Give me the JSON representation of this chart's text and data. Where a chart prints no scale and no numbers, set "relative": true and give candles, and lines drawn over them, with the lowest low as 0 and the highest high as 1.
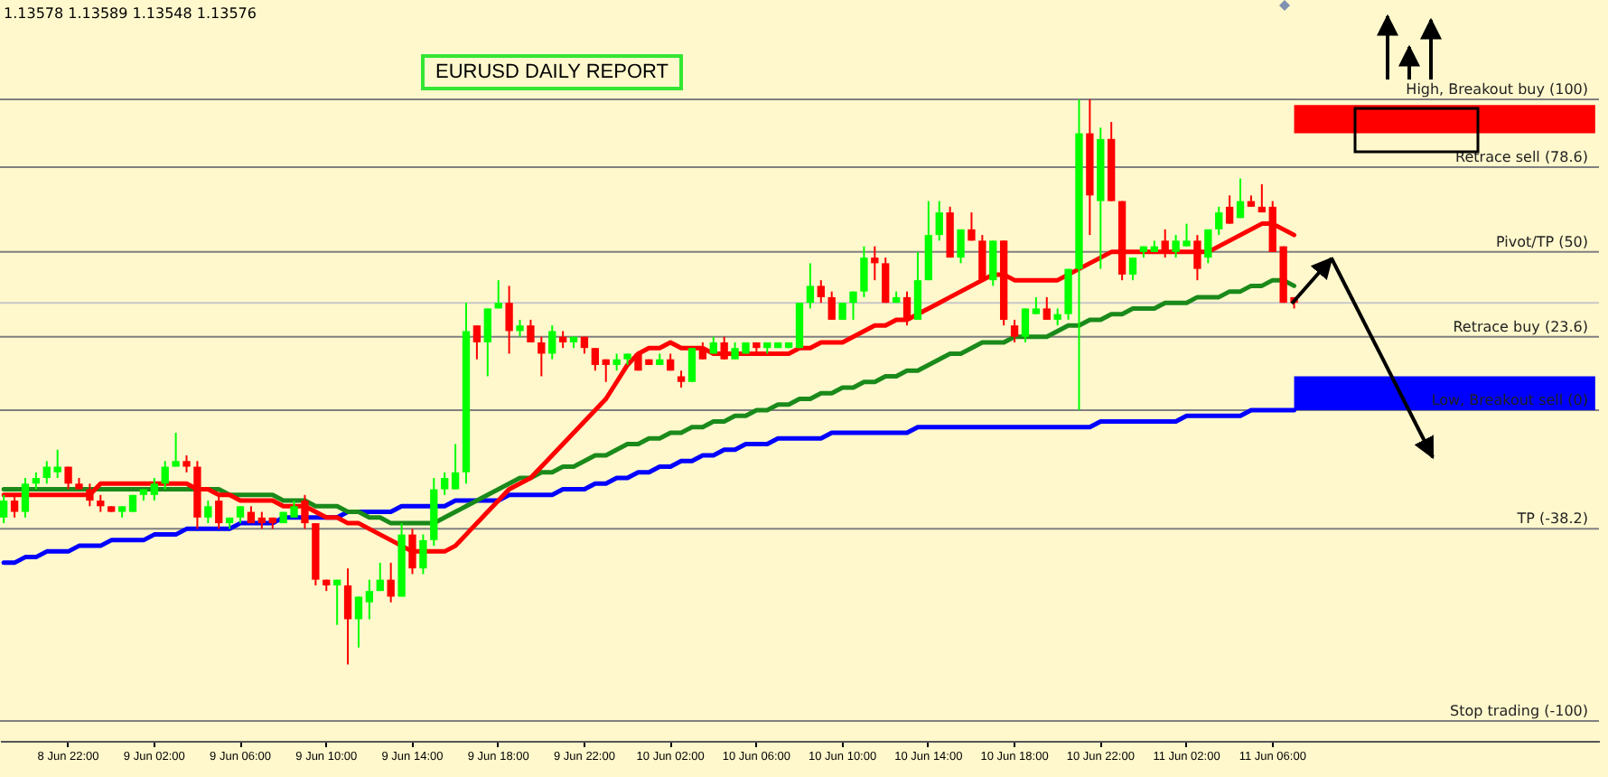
{
  "chart_data": {
    "type": "candlestick",
    "title": "EURUSD DAILY REPORT",
    "annotations": [
      "1.13578 1.13589 1.13548 1.13576"
    ],
    "relative": true,
    "categories": [
      null,
      null,
      null,
      null,
      null,
      null,
      "8 Jun 22:00",
      null,
      null,
      null,
      null,
      null,
      null,
      null,
      "9 Jun 02:00",
      null,
      null,
      null,
      null,
      null,
      null,
      null,
      "9 Jun 06:00",
      null,
      null,
      null,
      null,
      null,
      null,
      null,
      "9 Jun 10:00",
      null,
      null,
      null,
      null,
      null,
      null,
      null,
      "9 Jun 14:00",
      null,
      null,
      null,
      null,
      null,
      null,
      null,
      "9 Jun 18:00",
      null,
      null,
      null,
      null,
      null,
      null,
      null,
      "9 Jun 22:00",
      null,
      null,
      null,
      null,
      null,
      null,
      null,
      "10 Jun 02:00",
      null,
      null,
      null,
      null,
      null,
      null,
      null,
      "10 Jun 06:00",
      null,
      null,
      null,
      null,
      null,
      null,
      null,
      "10 Jun 10:00",
      null,
      null,
      null,
      null,
      null,
      null,
      null,
      "10 Jun 14:00",
      null,
      null,
      null,
      null,
      null,
      null,
      null,
      "10 Jun 18:00",
      null,
      null,
      null,
      null,
      null,
      null,
      null,
      "10 Jun 22:00",
      null,
      null,
      null,
      null,
      null,
      null,
      null,
      "11 Jun 02:00",
      null,
      null,
      null,
      null,
      null,
      null,
      null,
      "11 Jun 06:00",
      null,
      null,
      null,
      null,
      null,
      null,
      null,
      null,
      null,
      null,
      null,
      null,
      null,
      null,
      null,
      null,
      null,
      null,
      null,
      null,
      null,
      null,
      null,
      null,
      null,
      null,
      null,
      null,
      null,
      null
    ],
    "colors": [
      "#00ff00",
      "#ff0000",
      "#00ff00",
      "#00ff00",
      "#00ff00",
      "#00ff00",
      "#ff0000",
      "#ff0000",
      "#ff0000",
      "#ff0000",
      "#ff0000",
      "#00ff00",
      "#00ff00",
      "#00ff00",
      "#00ff00",
      "#00ff00",
      "#00ff00",
      "#ff0000",
      "#ff0000",
      "#00ff00",
      "#ff0000",
      "#00ff00",
      "#00ff00",
      "#ff0000",
      "#ff0000",
      "#ff0000",
      "#00ff00",
      "#00ff00",
      "#ff0000",
      "#ff0000",
      "#ff0000",
      "#00ff00",
      "#ff0000",
      "#00ff00",
      "#00ff00",
      "#00ff00",
      "#ff0000",
      "#00ff00",
      "#ff0000",
      "#00ff00",
      "#00ff00",
      "#00ff00",
      "#00ff00",
      "#00ff00",
      "#ff0000",
      "#00ff00",
      "#00ff00",
      "#ff0000",
      "#00ff00",
      "#ff0000",
      "#ff0000",
      "#00ff00",
      "#ff0000",
      "#00ff00",
      "#ff0000",
      "#ff0000",
      "#ff0000",
      "#00ff00",
      "#00ff00",
      "#ff0000",
      "#ff0000",
      "#00ff00",
      "#ff0000",
      "#ff0000",
      "#00ff00",
      "#ff0000",
      "#00ff00",
      "#ff0000",
      "#00ff00",
      "#00ff00",
      "#ff0000",
      "#00ff00",
      "#00ff00",
      "#00ff00",
      "#00ff00",
      "#00ff00",
      "#ff0000",
      "#ff0000",
      "#00ff00",
      "#00ff00",
      "#00ff00",
      "#ff0000",
      "#ff0000",
      "#00ff00",
      "#ff0000",
      "#00ff00",
      "#00ff00",
      "#00ff00",
      "#ff0000",
      "#00ff00",
      "#ff0000",
      "#ff0000",
      "#00ff00",
      "#ff0000",
      "#ff0000",
      "#00ff00",
      "#00ff00",
      "#ff0000",
      "#00ff00",
      "#00ff00",
      "#00ff00",
      "#ff0000",
      "#00ff00",
      "#ff0000",
      "#ff0000",
      "#00ff00",
      "#00ff00",
      "#00ff00",
      "#ff0000",
      "#00ff00",
      "#00ff00",
      "#ff0000",
      "#00ff00",
      "#00ff00",
      "#ff0000",
      "#00ff00",
      "#ff0000",
      "#ff0000",
      "#ff0000",
      "#ff0000",
      "#ff0000",
      null,
      null,
      null,
      null,
      null,
      null,
      null,
      null,
      null,
      null,
      null,
      null,
      null,
      null,
      null,
      null,
      null,
      null,
      null,
      null,
      null,
      null,
      null,
      null,
      null,
      null,
      null,
      null
    ],
    "ohlc": [
      [
        0.26,
        0.3,
        0.25,
        0.29
      ],
      [
        0.29,
        0.3,
        0.26,
        0.27
      ],
      [
        0.27,
        0.33,
        0.26,
        0.32
      ],
      [
        0.32,
        0.34,
        0.31,
        0.33
      ],
      [
        0.33,
        0.36,
        0.32,
        0.35
      ],
      [
        0.34,
        0.38,
        0.33,
        0.35
      ],
      [
        0.35,
        0.35,
        0.31,
        0.32
      ],
      [
        0.32,
        0.33,
        0.31,
        0.31
      ],
      [
        0.31,
        0.32,
        0.28,
        0.29
      ],
      [
        0.29,
        0.3,
        0.27,
        0.28
      ],
      [
        0.28,
        0.28,
        0.27,
        0.27
      ],
      [
        0.27,
        0.28,
        0.26,
        0.28
      ],
      [
        0.27,
        0.3,
        0.27,
        0.3
      ],
      [
        0.3,
        0.31,
        0.29,
        0.31
      ],
      [
        0.3,
        0.33,
        0.29,
        0.32
      ],
      [
        0.32,
        0.36,
        0.31,
        0.35
      ],
      [
        0.35,
        0.41,
        0.35,
        0.36
      ],
      [
        0.36,
        0.37,
        0.34,
        0.35
      ],
      [
        0.35,
        0.36,
        0.24,
        0.26
      ],
      [
        0.26,
        0.29,
        0.25,
        0.28
      ],
      [
        0.29,
        0.3,
        0.24,
        0.25
      ],
      [
        0.25,
        0.26,
        0.24,
        0.26
      ],
      [
        0.26,
        0.28,
        0.25,
        0.28
      ],
      [
        0.27,
        0.28,
        0.25,
        0.25
      ],
      [
        0.26,
        0.27,
        0.24,
        0.25
      ],
      [
        0.26,
        0.26,
        0.24,
        0.25
      ],
      [
        0.25,
        0.27,
        0.25,
        0.27
      ],
      [
        0.26,
        0.29,
        0.26,
        0.28
      ],
      [
        0.29,
        0.3,
        0.24,
        0.25
      ],
      [
        0.25,
        0.25,
        0.14,
        0.15
      ],
      [
        0.15,
        0.15,
        0.13,
        0.14
      ],
      [
        0.14,
        0.15,
        0.07,
        0.15
      ],
      [
        0.14,
        0.17,
        0,
        0.08
      ],
      [
        0.08,
        0.12,
        0.03,
        0.12
      ],
      [
        0.11,
        0.15,
        0.08,
        0.13
      ],
      [
        0.13,
        0.18,
        0.13,
        0.15
      ],
      [
        0.15,
        0.18,
        0.11,
        0.12
      ],
      [
        0.12,
        0.25,
        0.12,
        0.23
      ],
      [
        0.23,
        0.24,
        0.16,
        0.17
      ],
      [
        0.17,
        0.23,
        0.16,
        0.22
      ],
      [
        0.22,
        0.33,
        0.21,
        0.31
      ],
      [
        0.31,
        0.34,
        0.3,
        0.33
      ],
      [
        0.31,
        0.39,
        0.31,
        0.34
      ],
      [
        0.34,
        0.64,
        0.32,
        0.59
      ],
      [
        0.6,
        0.6,
        0.54,
        0.57
      ],
      [
        0.57,
        0.63,
        0.51,
        0.63
      ],
      [
        0.63,
        0.68,
        0.63,
        0.64
      ],
      [
        0.64,
        0.67,
        0.55,
        0.59
      ],
      [
        0.59,
        0.61,
        0.58,
        0.6
      ],
      [
        0.6,
        0.61,
        0.57,
        0.57
      ],
      [
        0.57,
        0.58,
        0.51,
        0.55
      ],
      [
        0.55,
        0.6,
        0.54,
        0.59
      ],
      [
        0.58,
        0.59,
        0.56,
        0.57
      ],
      [
        0.57,
        0.58,
        0.56,
        0.58
      ],
      [
        0.58,
        0.58,
        0.55,
        0.56
      ],
      [
        0.56,
        0.56,
        0.52,
        0.53
      ],
      [
        0.54,
        0.54,
        0.5,
        0.53
      ],
      [
        0.53,
        0.55,
        0.52,
        0.54
      ],
      [
        0.54,
        0.55,
        0.53,
        0.55
      ],
      [
        0.55,
        0.55,
        0.52,
        0.52
      ],
      [
        0.54,
        0.54,
        0.53,
        0.53
      ],
      [
        0.53,
        0.55,
        0.53,
        0.54
      ],
      [
        0.54,
        0.55,
        0.52,
        0.52
      ],
      [
        0.51,
        0.52,
        0.49,
        0.5
      ],
      [
        0.5,
        0.56,
        0.5,
        0.56
      ],
      [
        0.56,
        0.57,
        0.54,
        0.54
      ],
      [
        0.55,
        0.58,
        0.55,
        0.57
      ],
      [
        0.57,
        0.58,
        0.54,
        0.54
      ],
      [
        0.54,
        0.57,
        0.54,
        0.56
      ],
      [
        0.55,
        0.57,
        0.55,
        0.57
      ],
      [
        0.57,
        0.57,
        0.55,
        0.56
      ],
      [
        0.56,
        0.57,
        0.55,
        0.57
      ],
      [
        0.56,
        0.57,
        0.56,
        0.57
      ],
      [
        0.56,
        0.57,
        0.56,
        0.57
      ],
      [
        0.56,
        0.64,
        0.56,
        0.64
      ],
      [
        0.64,
        0.71,
        0.63,
        0.67
      ],
      [
        0.67,
        0.68,
        0.64,
        0.65
      ],
      [
        0.65,
        0.66,
        0.61,
        0.61
      ],
      [
        0.61,
        0.64,
        0.61,
        0.64
      ],
      [
        0.64,
        0.66,
        0.61,
        0.66
      ],
      [
        0.66,
        0.74,
        0.65,
        0.72
      ],
      [
        0.72,
        0.74,
        0.68,
        0.71
      ],
      [
        0.71,
        0.72,
        0.64,
        0.64
      ],
      [
        0.64,
        0.66,
        0.64,
        0.65
      ],
      [
        0.65,
        0.66,
        0.6,
        0.61
      ],
      [
        0.61,
        0.73,
        0.61,
        0.68
      ],
      [
        0.68,
        0.82,
        0.68,
        0.76
      ],
      [
        0.76,
        0.82,
        0.75,
        0.8
      ],
      [
        0.8,
        0.81,
        0.72,
        0.72
      ],
      [
        0.72,
        0.77,
        0.71,
        0.77
      ],
      [
        0.77,
        0.8,
        0.75,
        0.75
      ],
      [
        0.75,
        0.76,
        0.68,
        0.68
      ],
      [
        0.68,
        0.75,
        0.67,
        0.75
      ],
      [
        0.75,
        0.75,
        0.6,
        0.61
      ],
      [
        0.6,
        0.61,
        0.57,
        0.58
      ],
      [
        0.58,
        0.63,
        0.57,
        0.63
      ],
      [
        0.62,
        0.65,
        0.62,
        0.63
      ],
      [
        0.63,
        0.65,
        0.61,
        0.61
      ],
      [
        0.61,
        0.63,
        0.6,
        0.62
      ],
      [
        0.62,
        0.7,
        0.61,
        0.7
      ],
      [
        0.7,
        1.0,
        0.45,
        0.94
      ],
      [
        0.94,
        1.0,
        0.76,
        0.83
      ],
      [
        0.82,
        0.95,
        0.7,
        0.93
      ],
      [
        0.93,
        0.96,
        0.82,
        0.82
      ],
      [
        0.82,
        0.82,
        0.68,
        0.69
      ],
      [
        0.69,
        0.72,
        0.68,
        0.72
      ],
      [
        0.73,
        0.74,
        0.72,
        0.74
      ],
      [
        0.73,
        0.75,
        0.73,
        0.74
      ],
      [
        0.75,
        0.77,
        0.72,
        0.73
      ],
      [
        0.73,
        0.76,
        0.72,
        0.75
      ],
      [
        0.74,
        0.78,
        0.74,
        0.75
      ],
      [
        0.75,
        0.76,
        0.68,
        0.7
      ],
      [
        0.72,
        0.77,
        0.71,
        0.77
      ],
      [
        0.77,
        0.81,
        0.76,
        0.8
      ],
      [
        0.81,
        0.83,
        0.78,
        0.78
      ],
      [
        0.79,
        0.86,
        0.79,
        0.82
      ],
      [
        0.82,
        0.83,
        0.81,
        0.81
      ],
      [
        0.81,
        0.85,
        0.8,
        0.8
      ],
      [
        0.81,
        0.82,
        0.73,
        0.73
      ],
      [
        0.74,
        0.74,
        0.64,
        0.64
      ],
      [
        0.65,
        0.65,
        0.63,
        0.64
      ],
      null,
      null,
      null,
      null,
      null,
      null,
      null,
      null,
      null,
      null,
      null,
      null,
      null,
      null,
      null,
      null,
      null,
      null,
      null,
      null,
      null,
      null,
      null,
      null,
      null,
      null,
      null,
      null
    ],
    "series": [
      {
        "type": "line",
        "color": "#0000ff",
        "values": [
          0.18,
          0.18,
          0.19,
          0.19,
          0.2,
          0.2,
          0.2,
          0.21,
          0.21,
          0.21,
          0.22,
          0.22,
          0.22,
          0.22,
          0.23,
          0.23,
          0.23,
          0.24,
          0.24,
          0.24,
          0.24,
          0.24,
          0.25,
          0.25,
          0.25,
          0.25,
          0.26,
          0.26,
          0.26,
          0.26,
          0.26,
          0.26,
          0.27,
          0.27,
          0.27,
          0.27,
          0.27,
          0.28,
          0.28,
          0.28,
          0.28,
          0.28,
          0.29,
          0.29,
          0.29,
          0.29,
          0.29,
          0.3,
          0.3,
          0.3,
          0.3,
          0.3,
          0.31,
          0.31,
          0.31,
          0.32,
          0.32,
          0.33,
          0.33,
          0.34,
          0.34,
          0.35,
          0.35,
          0.36,
          0.36,
          0.37,
          0.37,
          0.38,
          0.38,
          0.39,
          0.39,
          0.39,
          0.4,
          0.4,
          0.4,
          0.4,
          0.4,
          0.41,
          0.41,
          0.41,
          0.41,
          0.41,
          0.41,
          0.41,
          0.41,
          0.42,
          0.42,
          0.42,
          0.42,
          0.42,
          0.42,
          0.42,
          0.42,
          0.42,
          0.42,
          0.42,
          0.42,
          0.42,
          0.42,
          0.42,
          0.42,
          0.42,
          0.43,
          0.43,
          0.43,
          0.43,
          0.43,
          0.43,
          0.43,
          0.43,
          0.44,
          0.44,
          0.44,
          0.44,
          0.44,
          0.44,
          0.45,
          0.45,
          0.45,
          0.45,
          0.45,
          null,
          null,
          null,
          null,
          null,
          null,
          null,
          null,
          null,
          null,
          null,
          null,
          null,
          null,
          null,
          null,
          null,
          null,
          null,
          null,
          null,
          null,
          null,
          null,
          null,
          null,
          null,
          null
        ]
      },
      {
        "type": "line",
        "color": "#1a8a1a",
        "values": [
          0.31,
          0.31,
          0.31,
          0.31,
          0.31,
          0.31,
          0.31,
          0.31,
          0.31,
          0.31,
          0.31,
          0.31,
          0.31,
          0.31,
          0.31,
          0.31,
          0.31,
          0.31,
          0.31,
          0.31,
          0.31,
          0.3,
          0.3,
          0.3,
          0.3,
          0.3,
          0.29,
          0.29,
          0.29,
          0.28,
          0.28,
          0.28,
          0.27,
          0.27,
          0.26,
          0.26,
          0.25,
          0.25,
          0.25,
          0.25,
          0.25,
          0.26,
          0.27,
          0.28,
          0.29,
          0.3,
          0.31,
          0.32,
          0.33,
          0.33,
          0.34,
          0.34,
          0.35,
          0.35,
          0.36,
          0.37,
          0.37,
          0.38,
          0.39,
          0.39,
          0.4,
          0.4,
          0.41,
          0.41,
          0.42,
          0.42,
          0.43,
          0.43,
          0.44,
          0.44,
          0.45,
          0.45,
          0.46,
          0.46,
          0.47,
          0.47,
          0.48,
          0.48,
          0.49,
          0.49,
          0.5,
          0.5,
          0.51,
          0.51,
          0.52,
          0.52,
          0.53,
          0.54,
          0.55,
          0.55,
          0.56,
          0.57,
          0.57,
          0.57,
          0.58,
          0.58,
          0.58,
          0.58,
          0.59,
          0.6,
          0.6,
          0.61,
          0.61,
          0.62,
          0.62,
          0.63,
          0.63,
          0.63,
          0.64,
          0.64,
          0.64,
          0.65,
          0.65,
          0.65,
          0.66,
          0.66,
          0.67,
          0.67,
          0.68,
          0.68,
          0.67,
          null,
          null,
          null,
          null,
          null,
          null,
          null,
          null,
          null,
          null,
          null,
          null,
          null,
          null,
          null,
          null,
          null,
          null,
          null,
          null,
          null,
          null,
          null,
          null,
          null,
          null,
          null,
          null
        ]
      },
      {
        "type": "line",
        "color": "#ff0000",
        "values": [
          0.3,
          0.3,
          0.3,
          0.3,
          0.3,
          0.3,
          0.3,
          0.3,
          0.3,
          0.32,
          0.32,
          0.32,
          0.32,
          0.32,
          0.32,
          0.32,
          0.32,
          0.32,
          0.31,
          0.31,
          0.3,
          0.3,
          0.29,
          0.29,
          0.29,
          0.29,
          0.28,
          0.28,
          0.28,
          0.27,
          0.26,
          0.26,
          0.25,
          0.25,
          0.24,
          0.23,
          0.22,
          0.21,
          0.2,
          0.2,
          0.2,
          0.2,
          0.21,
          0.23,
          0.25,
          0.27,
          0.29,
          0.31,
          0.32,
          0.33,
          0.35,
          0.37,
          0.39,
          0.41,
          0.43,
          0.45,
          0.47,
          0.5,
          0.53,
          0.55,
          0.56,
          0.56,
          0.57,
          0.56,
          0.56,
          0.56,
          0.55,
          0.55,
          0.55,
          0.55,
          0.55,
          0.55,
          0.55,
          0.55,
          0.56,
          0.56,
          0.57,
          0.57,
          0.57,
          0.58,
          0.59,
          0.6,
          0.6,
          0.61,
          0.61,
          0.62,
          0.63,
          0.64,
          0.65,
          0.66,
          0.67,
          0.68,
          0.69,
          0.69,
          0.68,
          0.68,
          0.68,
          0.68,
          0.68,
          0.69,
          0.7,
          0.71,
          0.72,
          0.73,
          0.73,
          0.73,
          0.73,
          0.73,
          0.73,
          0.73,
          0.73,
          0.73,
          0.73,
          0.74,
          0.75,
          0.76,
          0.77,
          0.78,
          0.78,
          0.77,
          0.76,
          null,
          null,
          null,
          null,
          null,
          null,
          null,
          null,
          null,
          null,
          null,
          null,
          null,
          null,
          null,
          null,
          null,
          null,
          null,
          null,
          null,
          null,
          null,
          null,
          null,
          null,
          null,
          null
        ]
      }
    ],
    "ref_lines": [
      {
        "axis": "y",
        "value": 1.0,
        "label": "High, Breakout buy (100)",
        "color": "#808080"
      },
      {
        "axis": "y",
        "value": 0.88,
        "label": "Retrace sell (78.6)",
        "color": "#808080"
      },
      {
        "axis": "y",
        "value": 0.73,
        "label": "Pivot/TP (50)",
        "color": "#808080"
      },
      {
        "axis": "y",
        "value": 0.64,
        "label": null,
        "color": "#c8c8c8"
      },
      {
        "axis": "y",
        "value": 0.58,
        "label": "Retrace buy (23.6)",
        "color": "#808080"
      },
      {
        "axis": "y",
        "value": 0.45,
        "label": "Low, Breakout sell (0)",
        "color": "#808080"
      },
      {
        "axis": "y",
        "value": 0.24,
        "label": "TP (-38.2)",
        "color": "#808080"
      },
      {
        "axis": "y",
        "value": -0.1,
        "label": "Stop trading (-100)",
        "color": "#808080"
      }
    ],
    "bands": [
      {
        "axis": "y",
        "from": 0.94,
        "to": 0.99,
        "color": "#ff0000"
      },
      {
        "axis": "y",
        "from": 0.45,
        "to": 0.51,
        "color": "#0000ff"
      }
    ]
  }
}
